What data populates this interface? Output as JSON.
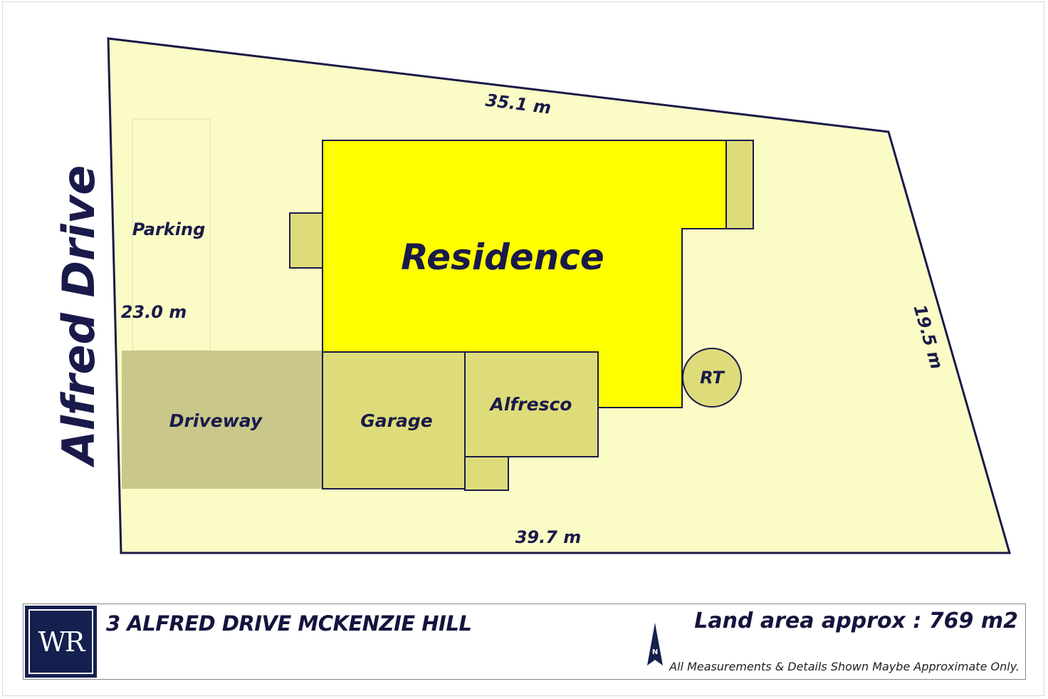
{
  "plan": {
    "street": "Alfred Drive",
    "dimensions": {
      "top": "35.1 m",
      "right": "19.5 m",
      "bottom": "39.7 m",
      "left": "23.0 m"
    },
    "areas": {
      "residence": "Residence",
      "parking": "Parking",
      "driveway": "Driveway",
      "garage": "Garage",
      "alfresco": "Alfresco",
      "rainwater_tank": "RT"
    }
  },
  "footer": {
    "logo": "WR",
    "address": "3 ALFRED DRIVE MCKENZIE HILL",
    "land_area": "Land area approx : 769 m2",
    "disclaimer": "All Measurements & Details Shown Maybe Approximate Only.",
    "north_label": "N"
  },
  "colors": {
    "lot": "#fbfbc6",
    "residence": "#ffff00",
    "structures": "#dedc7a",
    "driveway": "#c9c88a",
    "outline": "#1a1a4a"
  }
}
